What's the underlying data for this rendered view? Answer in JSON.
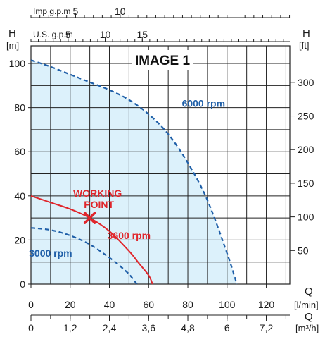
{
  "chart_data": {
    "type": "line",
    "title": "IMAGE 1",
    "colors": {
      "fill": "#dcf1fb",
      "grid": "#222222",
      "curve_blue": "#1f5fa8",
      "curve_red": "#e0262c",
      "label_red": "#e0262c"
    },
    "left_axis": {
      "symbol": "H",
      "unit": "[m]",
      "ticks": [
        0,
        20,
        40,
        60,
        80,
        100
      ],
      "range": [
        0,
        108
      ]
    },
    "right_axis": {
      "symbol": "H",
      "unit": "[ft]",
      "ticks": [
        50,
        100,
        150,
        200,
        250,
        300
      ]
    },
    "bottom_axis_1": {
      "symbol": "Q",
      "unit": "[l/min]",
      "ticks": [
        0,
        20,
        40,
        60,
        80,
        100,
        120
      ],
      "range": [
        0,
        132
      ]
    },
    "bottom_axis_2": {
      "symbol": "Q",
      "unit": "[m³/h]",
      "ticks": [
        "0",
        "1,2",
        "2,4",
        "3,6",
        "4,8",
        "6",
        "7,2"
      ]
    },
    "top_axis_us": {
      "label": "U.S. g.p.m",
      "symbol": "H",
      "ticks": [
        5,
        10,
        15
      ]
    },
    "top_axis_imp": {
      "label": "Imp g.p.m",
      "ticks": [
        5,
        10
      ]
    },
    "grid": true,
    "series": [
      {
        "name": "6000 rpm",
        "style": "dashed",
        "x": [
          0,
          10,
          20,
          30,
          40,
          50,
          60,
          70,
          80,
          90,
          100,
          105
        ],
        "y": [
          101.5,
          98.5,
          95,
          91.5,
          88,
          83.5,
          77,
          68,
          55,
          38,
          14,
          0
        ]
      },
      {
        "name": "3600 rpm",
        "style": "solid",
        "x": [
          0,
          10,
          20,
          30,
          40,
          50,
          55,
          60,
          62
        ],
        "y": [
          40,
          37,
          34,
          30,
          24,
          15,
          9.5,
          4,
          0
        ]
      },
      {
        "name": "3000 rpm",
        "style": "dashed",
        "x": [
          0,
          10,
          20,
          30,
          40,
          45,
          50,
          54
        ],
        "y": [
          25.5,
          24.5,
          22,
          18,
          12,
          8.5,
          4.5,
          0
        ]
      }
    ],
    "working_point": {
      "label_line1": "WORKING",
      "label_line2": "POINT",
      "x": 30,
      "y": 30
    }
  }
}
